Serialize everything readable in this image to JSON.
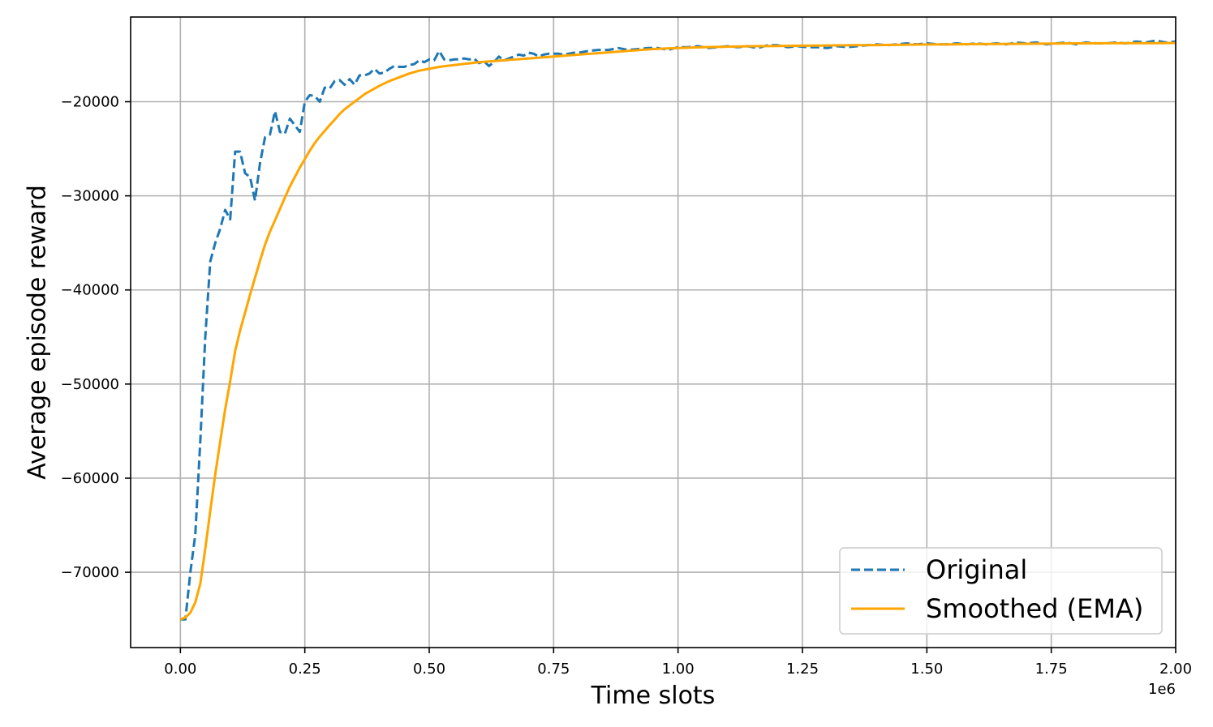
{
  "chart_data": {
    "type": "line",
    "xlabel": "Time slots",
    "ylabel": "Average episode reward",
    "x_offset_label": "1e6",
    "xlim": [
      -0.1,
      2.0
    ],
    "ylim": [
      -78000,
      -11000
    ],
    "grid": true,
    "legend_position": "lower-right",
    "x_ticks": [
      0.0,
      0.25,
      0.5,
      0.75,
      1.0,
      1.25,
      1.5,
      1.75,
      2.0
    ],
    "x_tick_labels": [
      "0.00",
      "0.25",
      "0.50",
      "0.75",
      "1.00",
      "1.25",
      "1.50",
      "1.75",
      "2.00"
    ],
    "y_ticks": [
      -70000,
      -60000,
      -50000,
      -40000,
      -30000,
      -20000
    ],
    "y_tick_labels": [
      "−70000",
      "−60000",
      "−50000",
      "−40000",
      "−30000",
      "−20000"
    ],
    "series": [
      {
        "name": "Original",
        "color": "#1f77b4",
        "style": "dashed",
        "x": [
          0.0,
          0.01,
          0.02,
          0.03,
          0.04,
          0.05,
          0.06,
          0.07,
          0.08,
          0.09,
          0.1,
          0.11,
          0.12,
          0.13,
          0.14,
          0.15,
          0.16,
          0.17,
          0.18,
          0.19,
          0.2,
          0.21,
          0.22,
          0.23,
          0.24,
          0.25,
          0.26,
          0.27,
          0.28,
          0.29,
          0.3,
          0.31,
          0.32,
          0.33,
          0.34,
          0.35,
          0.36,
          0.37,
          0.38,
          0.39,
          0.4,
          0.41,
          0.42,
          0.43,
          0.44,
          0.45,
          0.46,
          0.47,
          0.48,
          0.49,
          0.5,
          0.51,
          0.52,
          0.53,
          0.54,
          0.55,
          0.56,
          0.57,
          0.58,
          0.59,
          0.6,
          0.61,
          0.62,
          0.63,
          0.64,
          0.65,
          0.66,
          0.67,
          0.68,
          0.69,
          0.7,
          0.71,
          0.72,
          0.73,
          0.74,
          0.75,
          0.76,
          0.77,
          0.78,
          0.79,
          0.8,
          0.82,
          0.84,
          0.86,
          0.88,
          0.9,
          0.92,
          0.94,
          0.96,
          0.98,
          1.0,
          1.02,
          1.04,
          1.06,
          1.08,
          1.1,
          1.12,
          1.14,
          1.16,
          1.18,
          1.2,
          1.22,
          1.24,
          1.26,
          1.28,
          1.3,
          1.32,
          1.34,
          1.36,
          1.38,
          1.4,
          1.42,
          1.44,
          1.46,
          1.48,
          1.5,
          1.52,
          1.54,
          1.56,
          1.58,
          1.6,
          1.62,
          1.64,
          1.66,
          1.68,
          1.7,
          1.72,
          1.74,
          1.76,
          1.78,
          1.8,
          1.82,
          1.84,
          1.86,
          1.88,
          1.9,
          1.92,
          1.94,
          1.96,
          1.98,
          2.0
        ],
        "y": [
          -75000,
          -75000,
          -70000,
          -66000,
          -56000,
          -45000,
          -37000,
          -35000,
          -33500,
          -31500,
          -32500,
          -25300,
          -25300,
          -27600,
          -28000,
          -30500,
          -26500,
          -23800,
          -23500,
          -21000,
          -23200,
          -23400,
          -21800,
          -22500,
          -23200,
          -20000,
          -19300,
          -19400,
          -20000,
          -18500,
          -18600,
          -17800,
          -17700,
          -18200,
          -17600,
          -18200,
          -17200,
          -17200,
          -17000,
          -16500,
          -17000,
          -16900,
          -16500,
          -16200,
          -16300,
          -16300,
          -16100,
          -16000,
          -15600,
          -15800,
          -15500,
          -15600,
          -14600,
          -15500,
          -15600,
          -15500,
          -15500,
          -15400,
          -15500,
          -15400,
          -15900,
          -15700,
          -16200,
          -15800,
          -15200,
          -15600,
          -15400,
          -15200,
          -15000,
          -15100,
          -14800,
          -14900,
          -15200,
          -15000,
          -14900,
          -14900,
          -14900,
          -15000,
          -14900,
          -14800,
          -14800,
          -14600,
          -14500,
          -14500,
          -14300,
          -14500,
          -14400,
          -14300,
          -14300,
          -14500,
          -14200,
          -14200,
          -14100,
          -14300,
          -14200,
          -14100,
          -14200,
          -14100,
          -14300,
          -14000,
          -14000,
          -14200,
          -14100,
          -14200,
          -14200,
          -14300,
          -14100,
          -14200,
          -14100,
          -14000,
          -13900,
          -14000,
          -13900,
          -13800,
          -13900,
          -13800,
          -13900,
          -13900,
          -13800,
          -13900,
          -13800,
          -13900,
          -13800,
          -13900,
          -13700,
          -13800,
          -13700,
          -13900,
          -13800,
          -13700,
          -13900,
          -13700,
          -13800,
          -13800,
          -13700,
          -13800,
          -13600,
          -13700,
          -13500,
          -13700,
          -13600
        ]
      },
      {
        "name": "Smoothed (EMA)",
        "color": "#ffa500",
        "style": "solid",
        "x": [
          0.0,
          0.01,
          0.02,
          0.03,
          0.04,
          0.05,
          0.06,
          0.07,
          0.08,
          0.09,
          0.1,
          0.11,
          0.12,
          0.13,
          0.14,
          0.15,
          0.16,
          0.17,
          0.18,
          0.19,
          0.2,
          0.21,
          0.22,
          0.23,
          0.24,
          0.25,
          0.26,
          0.27,
          0.28,
          0.29,
          0.3,
          0.31,
          0.32,
          0.33,
          0.34,
          0.35,
          0.36,
          0.37,
          0.38,
          0.39,
          0.4,
          0.42,
          0.44,
          0.46,
          0.48,
          0.5,
          0.52,
          0.55,
          0.6,
          0.65,
          0.7,
          0.75,
          0.8,
          0.85,
          0.9,
          0.95,
          1.0,
          1.05,
          1.1,
          1.15,
          1.2,
          1.25,
          1.3,
          1.35,
          1.4,
          1.45,
          1.5,
          1.55,
          1.6,
          1.65,
          1.7,
          1.75,
          1.8,
          1.85,
          1.9,
          1.95,
          2.0
        ],
        "y": [
          -75000,
          -74800,
          -74300,
          -73200,
          -71200,
          -67500,
          -63500,
          -59600,
          -56100,
          -52700,
          -49700,
          -46500,
          -44300,
          -42400,
          -40500,
          -38700,
          -36900,
          -35200,
          -33800,
          -32600,
          -31400,
          -30200,
          -29000,
          -28000,
          -27000,
          -26100,
          -25200,
          -24400,
          -23700,
          -23100,
          -22500,
          -21900,
          -21300,
          -20800,
          -20400,
          -20000,
          -19600,
          -19200,
          -18900,
          -18600,
          -18300,
          -17800,
          -17400,
          -17000,
          -16700,
          -16500,
          -16300,
          -16100,
          -15800,
          -15600,
          -15400,
          -15200,
          -15000,
          -14800,
          -14600,
          -14400,
          -14300,
          -14200,
          -14150,
          -14100,
          -14080,
          -14050,
          -14020,
          -14000,
          -13980,
          -13950,
          -13920,
          -13900,
          -13880,
          -13860,
          -13840,
          -13820,
          -13800,
          -13790,
          -13780,
          -13770,
          -13760
        ]
      }
    ]
  }
}
